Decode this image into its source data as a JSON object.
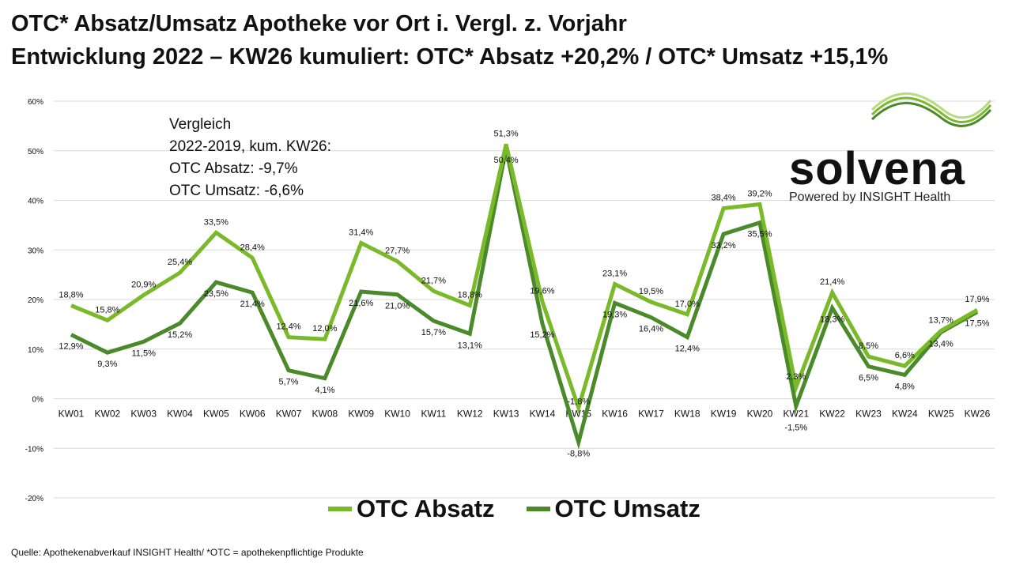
{
  "title_line1": "OTC* Absatz/Umsatz Apotheke vor Ort i. Vergl. z. Vorjahr",
  "title_line2": "Entwicklung 2022 – KW26 kumuliert: OTC* Absatz +20,2% / OTC* Umsatz +15,1%",
  "note": {
    "l1": "Vergleich",
    "l2": "2022-2019, kum. KW26:",
    "l3": "OTC Absatz:   -9,7%",
    "l4": "OTC Umsatz:  -6,6%"
  },
  "logo": {
    "name": "solvena",
    "sub": "Powered by INSIGHT Health"
  },
  "source": "Quelle: Apothekenabverkauf INSIGHT Health/ *OTC = apothekenpflichtige Produkte",
  "colors": {
    "absatz": "#7ab929",
    "umsatz": "#4a8a2a",
    "grid": "#d9d9d9"
  },
  "chart_data": {
    "type": "line",
    "title": "OTC* Absatz/Umsatz Apotheke vor Ort i. Vergl. z. Vorjahr",
    "categories": [
      "KW01",
      "KW02",
      "KW03",
      "KW04",
      "KW05",
      "KW06",
      "KW07",
      "KW08",
      "KW09",
      "KW10",
      "KW11",
      "KW12",
      "KW13",
      "KW14",
      "KW15",
      "KW16",
      "KW17",
      "KW18",
      "KW19",
      "KW20",
      "KW21",
      "KW22",
      "KW23",
      "KW24",
      "KW25",
      "KW26"
    ],
    "series": [
      {
        "name": "OTC Absatz",
        "values": [
          18.8,
          15.8,
          20.9,
          25.4,
          33.5,
          28.4,
          12.4,
          12.0,
          31.4,
          27.7,
          21.7,
          18.8,
          51.3,
          19.6,
          -1.8,
          23.1,
          19.5,
          17.0,
          38.4,
          39.2,
          2.3,
          21.4,
          8.5,
          6.6,
          13.7,
          17.9
        ]
      },
      {
        "name": "OTC Umsatz",
        "values": [
          12.9,
          9.3,
          11.5,
          15.2,
          23.5,
          21.4,
          5.7,
          4.1,
          21.6,
          21.0,
          15.7,
          13.1,
          50.4,
          15.2,
          -8.8,
          19.3,
          16.4,
          12.4,
          33.2,
          35.5,
          -1.5,
          18.3,
          6.5,
          4.8,
          13.4,
          17.5
        ]
      }
    ],
    "yticks": [
      60,
      50,
      40,
      30,
      20,
      10,
      0,
      -10,
      -20
    ],
    "ylim": [
      -20,
      60
    ],
    "ylabel": "",
    "xlabel": "",
    "grid": true,
    "legend": "bottom"
  }
}
